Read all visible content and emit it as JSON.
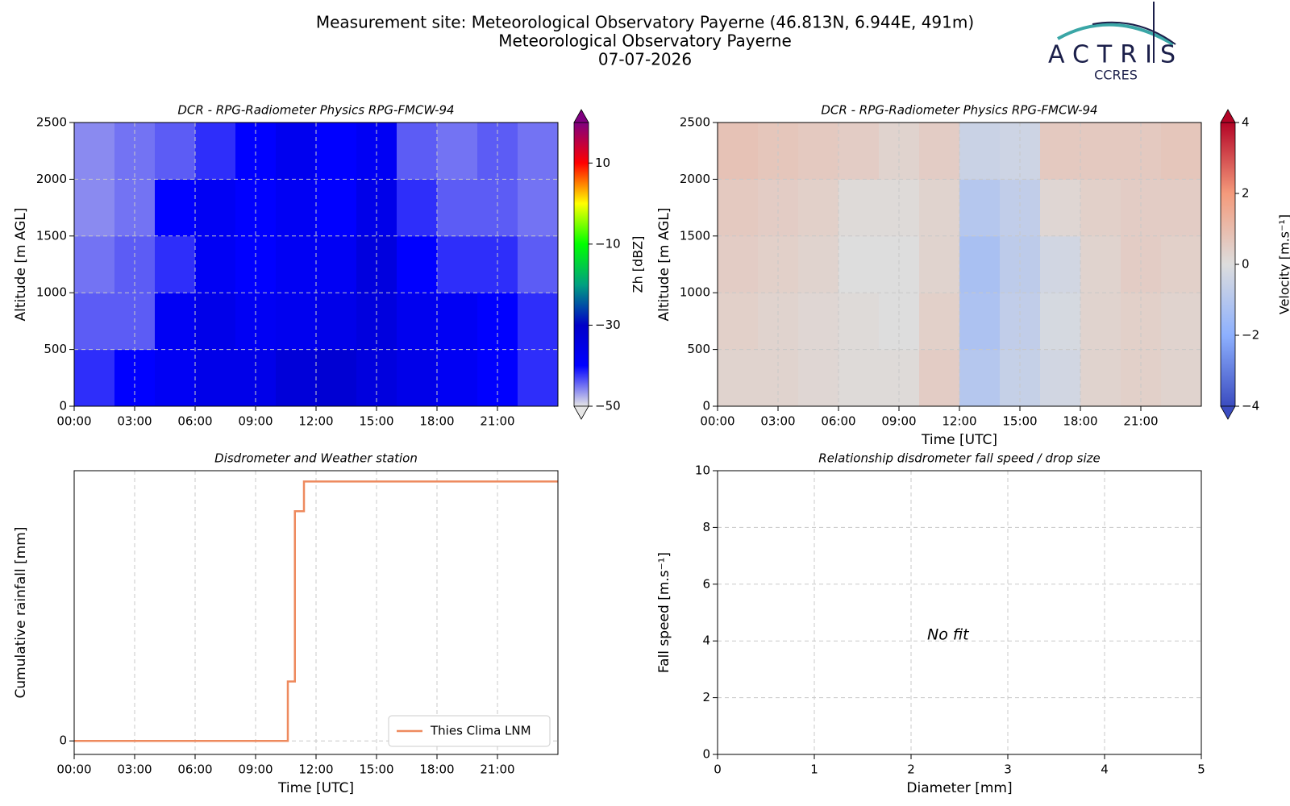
{
  "header": {
    "lines": [
      "Measurement site: Meteorological Observatory Payerne (46.813N, 6.944E, 491m)",
      "Meteorological Observatory Payerne",
      "07-07-2026"
    ],
    "logo": "ACTRIS",
    "logo_sub": "CCRES"
  },
  "chart_data": [
    {
      "type": "heatmap",
      "title": "DCR - RPG-Radiometer Physics RPG-FMCW-94",
      "y_label": "Altitude [m AGL]",
      "xlim": [
        0,
        24
      ],
      "xticks": [
        {
          "value": 0,
          "label": "00:00"
        },
        {
          "value": 3,
          "label": "03:00"
        },
        {
          "value": 6,
          "label": "06:00"
        },
        {
          "value": 9,
          "label": "09:00"
        },
        {
          "value": 12,
          "label": "12:00"
        },
        {
          "value": 15,
          "label": "15:00"
        },
        {
          "value": 18,
          "label": "18:00"
        },
        {
          "value": 21,
          "label": "21:00"
        }
      ],
      "ylim": [
        0,
        2500
      ],
      "yticks": [
        0,
        500,
        1000,
        1500,
        2000,
        2500
      ],
      "grid": true,
      "xbins": [
        0,
        2,
        4,
        6,
        8,
        10,
        12,
        14,
        16,
        18,
        20,
        22,
        24
      ],
      "ybins": [
        0,
        500,
        1000,
        1500,
        2000,
        2500
      ],
      "z": [
        [
          -42,
          -40,
          -38,
          -36,
          -36,
          -33,
          -32,
          -34,
          -36,
          -38,
          -40,
          -42
        ],
        [
          -44,
          -44,
          -38,
          -36,
          -38,
          -37,
          -36,
          -34,
          -37,
          -38,
          -40,
          -42
        ],
        [
          -45,
          -44,
          -42,
          -38,
          -40,
          -38,
          -38,
          -34,
          -40,
          -42,
          -42,
          -44
        ],
        [
          -46,
          -45,
          -40,
          -38,
          -40,
          -38,
          -40,
          -36,
          -42,
          -44,
          -44,
          -45
        ],
        [
          -46,
          -45,
          -44,
          -42,
          -40,
          -37,
          -40,
          -38,
          -44,
          -45,
          -44,
          -45
        ]
      ],
      "colormap": [
        "#e6e6e6",
        "#0000ff",
        "#0000c8",
        "#00a080",
        "#00ff00",
        "#ffff00",
        "#ff0000",
        "#800080"
      ],
      "clim": [
        -50,
        20
      ],
      "cticks": [
        {
          "value": -50,
          "label": "−50"
        },
        {
          "value": -30,
          "label": "−30"
        },
        {
          "value": -10,
          "label": "−10"
        },
        10
      ],
      "clabel": "Zh [dBZ]"
    },
    {
      "type": "heatmap",
      "title": "DCR - RPG-Radiometer Physics RPG-FMCW-94",
      "y_label": "Altitude [m AGL]",
      "x_label": "Time [UTC]",
      "xlim": [
        0,
        24
      ],
      "xticks": [
        {
          "value": 0,
          "label": "00:00"
        },
        {
          "value": 3,
          "label": "03:00"
        },
        {
          "value": 6,
          "label": "06:00"
        },
        {
          "value": 9,
          "label": "09:00"
        },
        {
          "value": 12,
          "label": "12:00"
        },
        {
          "value": 15,
          "label": "15:00"
        },
        {
          "value": 18,
          "label": "18:00"
        },
        {
          "value": 21,
          "label": "21:00"
        }
      ],
      "ylim": [
        0,
        2500
      ],
      "yticks": [
        0,
        500,
        1000,
        1500,
        2000,
        2500
      ],
      "grid": true,
      "xbins": [
        0,
        2,
        4,
        6,
        8,
        10,
        12,
        14,
        16,
        18,
        20,
        22,
        24
      ],
      "ybins": [
        0,
        500,
        1000,
        1500,
        2000,
        2500
      ],
      "z": [
        [
          0.3,
          0.3,
          0.2,
          0.1,
          0.1,
          0.5,
          -1.0,
          -0.6,
          -0.3,
          0.3,
          0.4,
          0.3
        ],
        [
          0.4,
          0.3,
          0.2,
          0.1,
          0,
          0.4,
          -1.2,
          -0.7,
          -0.2,
          0.3,
          0.4,
          0.3
        ],
        [
          0.5,
          0.4,
          0.3,
          0,
          0,
          0.3,
          -1.3,
          -0.8,
          -0.3,
          0.3,
          0.5,
          0.4
        ],
        [
          0.6,
          0.5,
          0.4,
          0.1,
          0.1,
          0.3,
          -1.0,
          -0.7,
          0.2,
          0.4,
          0.5,
          0.5
        ],
        [
          0.8,
          0.7,
          0.6,
          0.5,
          0.3,
          0.5,
          -0.5,
          -0.4,
          0.6,
          0.6,
          0.6,
          0.7
        ]
      ],
      "colormap": [
        "#3b4cc0",
        "#8db0fe",
        "#dddddd",
        "#f49a7b",
        "#b40426"
      ],
      "clim": [
        -4,
        4
      ],
      "cticks": [
        {
          "value": -4,
          "label": "−4"
        },
        {
          "value": -2,
          "label": "−2"
        },
        0,
        2,
        4
      ],
      "clabel": "Velocity [m.s⁻¹]"
    },
    {
      "type": "line",
      "title": "Disdrometer and Weather station",
      "y_label": "Cumulative rainfall [mm]",
      "x_label": "Time [UTC]",
      "xlim": [
        0,
        24
      ],
      "xticks": [
        {
          "value": 0,
          "label": "00:00"
        },
        {
          "value": 3,
          "label": "03:00"
        },
        {
          "value": 6,
          "label": "06:00"
        },
        {
          "value": 9,
          "label": "09:00"
        },
        {
          "value": 12,
          "label": "12:00"
        },
        {
          "value": 15,
          "label": "15:00"
        },
        {
          "value": 18,
          "label": "18:00"
        },
        {
          "value": 21,
          "label": "21:00"
        }
      ],
      "ylim": [
        -0.05,
        1.0
      ],
      "yticks": [
        0
      ],
      "grid": true,
      "legend": "lower right",
      "x": [
        0,
        10.6,
        10.6,
        10.95,
        10.95,
        11.4,
        11.4,
        24
      ],
      "series": [
        {
          "name": "Thies Clima LNM",
          "color": "#ee8a5e",
          "values": [
            0,
            0,
            0.22,
            0.22,
            0.85,
            0.85,
            0.96,
            0.96
          ]
        }
      ]
    },
    {
      "type": "scatter",
      "title": "Relationship disdrometer fall speed / drop size",
      "y_label": "Fall speed [m.s⁻¹]",
      "x_label": "Diameter [mm]",
      "xlim": [
        0,
        5
      ],
      "xticks": [
        0,
        1,
        2,
        3,
        4,
        5
      ],
      "ylim": [
        0,
        10
      ],
      "yticks": [
        0,
        2,
        4,
        6,
        8,
        10
      ],
      "grid": true,
      "annotation": "No fit"
    }
  ]
}
